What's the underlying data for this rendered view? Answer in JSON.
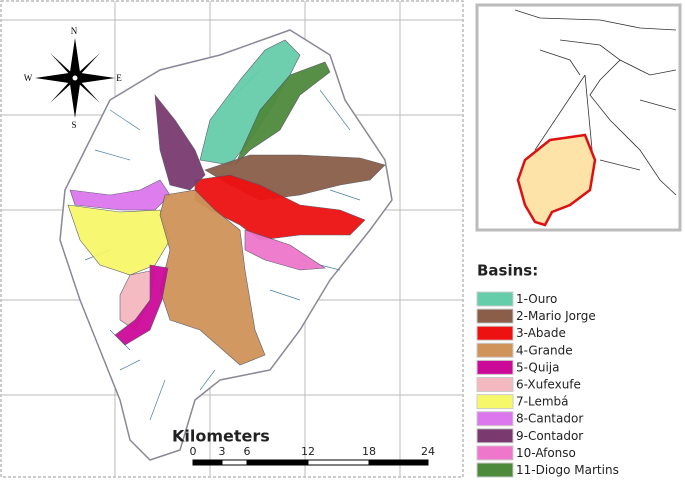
{
  "compass": {
    "north": "N",
    "south": "S",
    "east": "E",
    "west": "W"
  },
  "scale_bar": {
    "label": "Kilometers",
    "ticks": [
      "0",
      "3",
      "6",
      "12",
      "18",
      "24"
    ]
  },
  "legend": {
    "title": "Basins:",
    "items": [
      {
        "label": "1-Ouro",
        "color": "#66cdaa"
      },
      {
        "label": "2-Mario Jorge",
        "color": "#8a5e48"
      },
      {
        "label": "3-Abade",
        "color": "#ee1111"
      },
      {
        "label": "4-Grande",
        "color": "#d0935a"
      },
      {
        "label": "5-Quija",
        "color": "#cc0a9a"
      },
      {
        "label": "6-Xufexufe",
        "color": "#f4b8c0"
      },
      {
        "label": "7-Lembá",
        "color": "#f7f76a"
      },
      {
        "label": "8-Cantador",
        "color": "#dd77ee"
      },
      {
        "label": "9-Contador",
        "color": "#7a3a70"
      },
      {
        "label": "10-Afonso",
        "color": "#ee77cc"
      },
      {
        "label": "11-Diogo Martins",
        "color": "#4e8a3c"
      }
    ]
  }
}
